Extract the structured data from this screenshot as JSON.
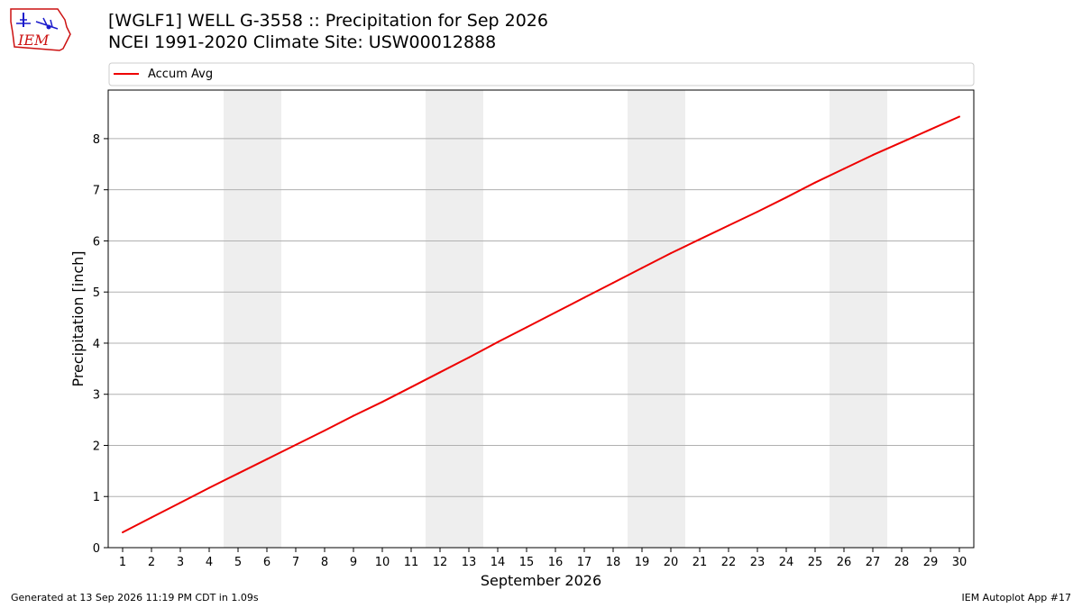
{
  "header": {
    "title_line1": "[WGLF1] WELL G-3558 :: Precipitation for Sep 2026",
    "title_line2": "NCEI 1991-2020 Climate Site: USW00012888",
    "logo_text": "IEM"
  },
  "footer": {
    "generated": "Generated at 13 Sep 2026 11:19 PM CDT in 1.09s",
    "app": "IEM Autoplot App #17"
  },
  "colors": {
    "series": "#ee0000",
    "weekend_shade": "#eeeeee",
    "grid": "#b0b0b0",
    "logo_blue": "#1a1acc",
    "logo_red": "#cc1111"
  },
  "chart_data": {
    "type": "line",
    "xlabel": "September 2026",
    "ylabel": "Precipitation [inch]",
    "x": [
      1,
      2,
      3,
      4,
      5,
      6,
      7,
      8,
      9,
      10,
      11,
      12,
      13,
      14,
      15,
      16,
      17,
      18,
      19,
      20,
      21,
      22,
      23,
      24,
      25,
      26,
      27,
      28,
      29,
      30
    ],
    "x_tick_labels": [
      "1",
      "2",
      "3",
      "4",
      "5",
      "6",
      "7",
      "8",
      "9",
      "10",
      "11",
      "12",
      "13",
      "14",
      "15",
      "16",
      "17",
      "18",
      "19",
      "20",
      "21",
      "22",
      "23",
      "24",
      "25",
      "26",
      "27",
      "28",
      "29",
      "30"
    ],
    "xlim": [
      0.5,
      30.5
    ],
    "ylim": [
      0,
      8.95
    ],
    "y_ticks": [
      0,
      1,
      2,
      3,
      4,
      5,
      6,
      7,
      8
    ],
    "y_tick_labels": [
      "0",
      "1",
      "2",
      "3",
      "4",
      "5",
      "6",
      "7",
      "8"
    ],
    "grid": "horizontal",
    "legend": "top, above plot",
    "shaded_days": [
      [
        5,
        6
      ],
      [
        12,
        13
      ],
      [
        19,
        20
      ],
      [
        26,
        27
      ]
    ],
    "series": [
      {
        "name": "Accum Avg",
        "values": [
          0.3,
          0.59,
          0.88,
          1.17,
          1.45,
          1.73,
          2.01,
          2.29,
          2.58,
          2.85,
          3.14,
          3.43,
          3.72,
          4.02,
          4.31,
          4.6,
          4.89,
          5.18,
          5.47,
          5.76,
          6.03,
          6.3,
          6.57,
          6.85,
          7.14,
          7.41,
          7.68,
          7.93,
          8.18,
          8.43
        ]
      }
    ]
  }
}
